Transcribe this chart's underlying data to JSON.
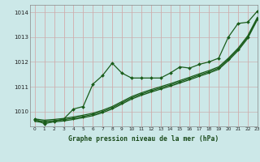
{
  "xlabel": "Graphe pression niveau de la mer (hPa)",
  "xlim": [
    -0.5,
    23
  ],
  "ylim": [
    1009.4,
    1014.3
  ],
  "yticks": [
    1010,
    1011,
    1012,
    1013,
    1014
  ],
  "xticks": [
    0,
    1,
    2,
    3,
    4,
    5,
    6,
    7,
    8,
    9,
    10,
    11,
    12,
    13,
    14,
    15,
    16,
    17,
    18,
    19,
    20,
    21,
    22,
    23
  ],
  "bg_color": "#cce8e8",
  "line_color": "#1a5c1a",
  "lines": [
    {
      "x": [
        0,
        1,
        2,
        3,
        4,
        5,
        6,
        7,
        8,
        9,
        10,
        11,
        12,
        13,
        14,
        15,
        16,
        17,
        18,
        19,
        20,
        21,
        22,
        23
      ],
      "y": [
        1009.7,
        1009.5,
        1009.6,
        1009.7,
        1010.1,
        1010.2,
        1011.1,
        1011.45,
        1011.95,
        1011.55,
        1011.35,
        1011.35,
        1011.35,
        1011.35,
        1011.55,
        1011.8,
        1011.75,
        1011.9,
        1012.0,
        1012.15,
        1013.0,
        1013.55,
        1013.6,
        1014.05
      ],
      "marker": "D",
      "ms": 2.0,
      "lw": 0.9
    },
    {
      "x": [
        0,
        1,
        2,
        3,
        4,
        5,
        6,
        7,
        8,
        9,
        10,
        11,
        12,
        13,
        14,
        15,
        16,
        17,
        18,
        19,
        20,
        21,
        22,
        23
      ],
      "y": [
        1009.7,
        1009.65,
        1009.68,
        1009.72,
        1009.78,
        1009.85,
        1009.93,
        1010.05,
        1010.2,
        1010.4,
        1010.6,
        1010.75,
        1010.88,
        1011.0,
        1011.12,
        1011.25,
        1011.38,
        1011.52,
        1011.65,
        1011.8,
        1012.15,
        1012.55,
        1013.05,
        1013.8
      ],
      "marker": null,
      "ms": 0,
      "lw": 0.9
    },
    {
      "x": [
        0,
        1,
        2,
        3,
        4,
        5,
        6,
        7,
        8,
        9,
        10,
        11,
        12,
        13,
        14,
        15,
        16,
        17,
        18,
        19,
        20,
        21,
        22,
        23
      ],
      "y": [
        1009.65,
        1009.6,
        1009.63,
        1009.67,
        1009.73,
        1009.8,
        1009.88,
        1010.0,
        1010.15,
        1010.35,
        1010.55,
        1010.7,
        1010.83,
        1010.95,
        1011.07,
        1011.2,
        1011.33,
        1011.47,
        1011.6,
        1011.75,
        1012.1,
        1012.5,
        1013.0,
        1013.75
      ],
      "marker": "D",
      "ms": 2.0,
      "lw": 0.9
    },
    {
      "x": [
        0,
        1,
        2,
        3,
        4,
        5,
        6,
        7,
        8,
        9,
        10,
        11,
        12,
        13,
        14,
        15,
        16,
        17,
        18,
        19,
        20,
        21,
        22,
        23
      ],
      "y": [
        1009.6,
        1009.55,
        1009.58,
        1009.62,
        1009.68,
        1009.75,
        1009.83,
        1009.95,
        1010.1,
        1010.3,
        1010.5,
        1010.65,
        1010.78,
        1010.9,
        1011.02,
        1011.15,
        1011.28,
        1011.42,
        1011.55,
        1011.7,
        1012.05,
        1012.45,
        1012.95,
        1013.7
      ],
      "marker": null,
      "ms": 0,
      "lw": 0.9
    }
  ]
}
